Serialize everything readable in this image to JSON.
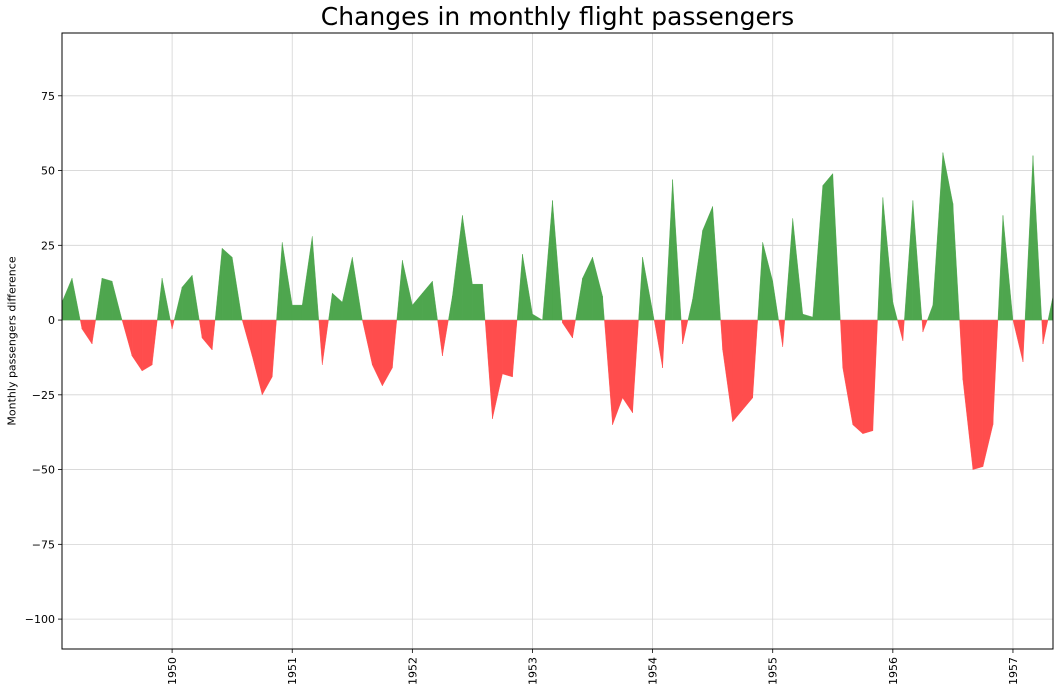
{
  "chart_data": {
    "type": "area",
    "title": "Changes in monthly flight passengers",
    "xlabel": "",
    "ylabel": "Monthly passengers difference",
    "x_start": "1949-02",
    "x_step": "1 month",
    "values": [
      6,
      14,
      -3,
      -8,
      14,
      13,
      0,
      -12,
      -17,
      -15,
      14,
      -3,
      11,
      15,
      -6,
      -10,
      24,
      21,
      0,
      -12,
      -25,
      -19,
      26,
      5,
      5,
      28,
      -15,
      9,
      6,
      21,
      0,
      -15,
      -22,
      -16,
      20,
      5,
      9,
      13,
      -12,
      8,
      35,
      12,
      12,
      -33,
      -18,
      -19,
      22,
      2,
      0,
      40,
      -1,
      -6,
      14,
      21,
      8,
      -35,
      -26,
      -31,
      21,
      3,
      -16,
      47,
      -8,
      7,
      30,
      38,
      -10,
      -34,
      -30,
      -26,
      26,
      13,
      -9,
      34,
      2,
      1,
      45,
      49,
      -16,
      -35,
      -38,
      -37,
      41,
      6,
      -7,
      40,
      -4,
      5,
      56,
      39,
      -20,
      -50,
      -49,
      -35,
      35,
      0,
      -14,
      55,
      -8,
      8
    ],
    "x_range": [
      "1949-02",
      "1957-05"
    ],
    "ylim": [
      -110,
      96
    ],
    "x_ticks": [
      "1950",
      "1951",
      "1952",
      "1953",
      "1954",
      "1955",
      "1956",
      "1957"
    ],
    "y_ticks": [
      -100,
      -75,
      -50,
      -25,
      0,
      25,
      50,
      75
    ],
    "grid": true,
    "colors": {
      "positive": "#4ea64e",
      "negative": "#ff4d4d",
      "grid": "#d4d4d4"
    }
  }
}
